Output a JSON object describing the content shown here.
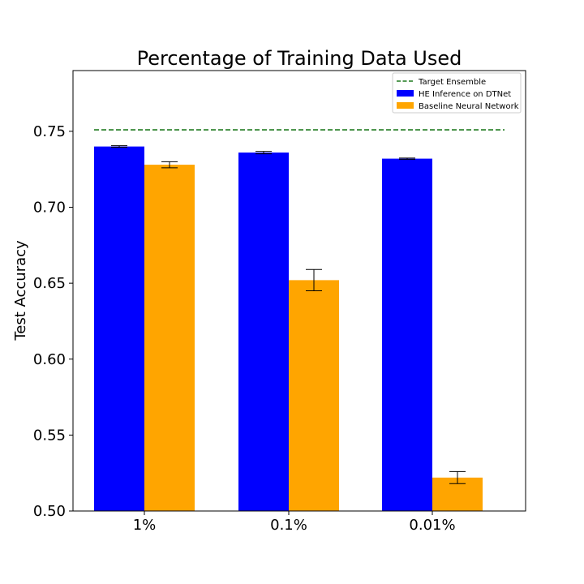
{
  "chart_data": {
    "type": "bar",
    "title": "Percentage of Training Data Used",
    "xlabel": "",
    "ylabel": "Test Accuracy",
    "categories": [
      "1%",
      "0.1%",
      "0.01%"
    ],
    "ylim": [
      0.5,
      0.79
    ],
    "yticks": [
      0.5,
      0.55,
      0.6,
      0.65,
      0.7,
      0.75
    ],
    "ytick_labels": [
      "0.50",
      "0.55",
      "0.60",
      "0.65",
      "0.70",
      "0.75"
    ],
    "series": [
      {
        "name": "HE Inference on DTNet",
        "color": "#0000ff",
        "values": [
          0.74,
          0.736,
          0.732
        ],
        "errors": [
          0.0005,
          0.0008,
          0.0004
        ]
      },
      {
        "name": "Baseline Neural Network",
        "color": "#ffa500",
        "values": [
          0.728,
          0.652,
          0.522
        ],
        "errors": [
          0.002,
          0.007,
          0.004
        ]
      }
    ],
    "reference_line": {
      "name": "Target Ensemble",
      "value": 0.751,
      "color": "#1f7a1f",
      "style": "dashed"
    },
    "legend_placement": "top-right",
    "grid": false
  }
}
